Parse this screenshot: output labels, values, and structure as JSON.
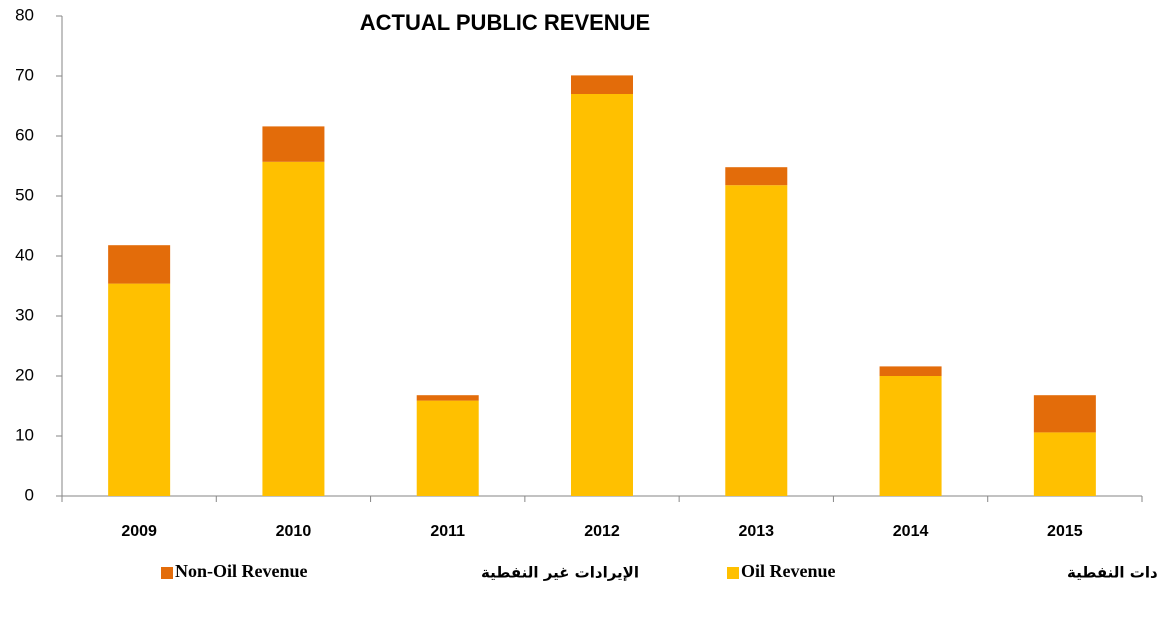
{
  "chart_data": {
    "type": "stacked_bar",
    "title": "ACTUAL PUBLIC REVENUE",
    "categories": [
      "2009",
      "2010",
      "2011",
      "2012",
      "2013",
      "2014",
      "2015"
    ],
    "series": [
      {
        "name": "Oil Revenue",
        "name_ar": "الإيرادات النفطية",
        "color": "#FFC000",
        "values": [
          35.4,
          55.7,
          15.9,
          67.0,
          51.8,
          20.0,
          10.6
        ]
      },
      {
        "name": "Non-Oil Revenue",
        "name_ar": "الإيرادات غير النفطية",
        "color": "#E36C0A",
        "values": [
          6.4,
          5.9,
          0.9,
          3.1,
          3.0,
          1.6,
          6.2
        ]
      }
    ],
    "ylim": [
      0,
      80
    ],
    "yticks": [
      0,
      10,
      20,
      30,
      40,
      50,
      60,
      70,
      80
    ],
    "grid": false,
    "legend": "bottom"
  }
}
